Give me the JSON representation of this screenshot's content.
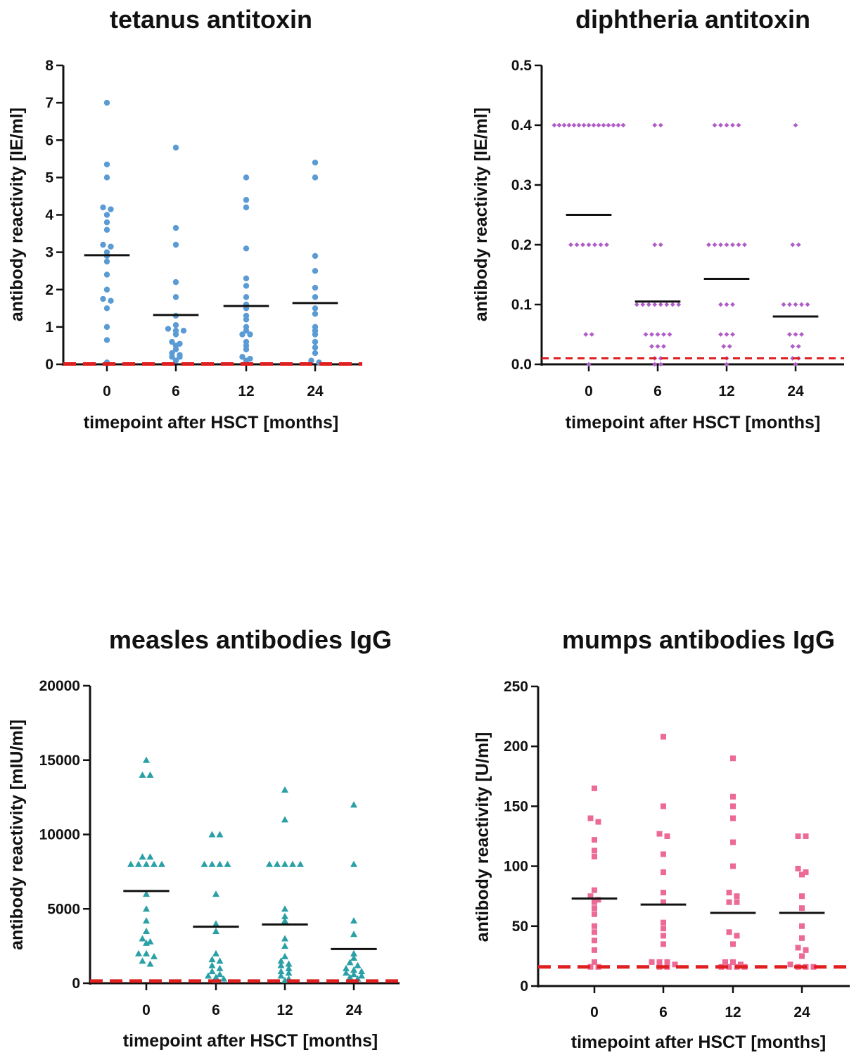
{
  "chart_data": [
    {
      "type": "scatter",
      "title": "tetanus antitoxin",
      "xlabel": "timepoint after HSCT [months]",
      "ylabel": "antibody reactivity [IE/ml]",
      "categories": [
        "0",
        "6",
        "12",
        "24"
      ],
      "ylim": [
        0,
        8
      ],
      "yticks": [
        "0",
        "1",
        "2",
        "3",
        "4",
        "5",
        "6",
        "7",
        "8"
      ],
      "marker": "circle",
      "color": "#5b9bd5",
      "threshold": 0.01,
      "threshold_color": "#e02020",
      "means": [
        2.92,
        1.32,
        1.56,
        1.64
      ],
      "series": [
        {
          "values": [
            7.0,
            5.35,
            5.0,
            4.2,
            4.15,
            4.0,
            3.8,
            3.6,
            3.2,
            3.15,
            3.0,
            2.9,
            2.75,
            2.4,
            2.0,
            1.75,
            1.7,
            1.5,
            1.0,
            0.65,
            0.05
          ]
        },
        {
          "values": [
            5.8,
            3.65,
            3.2,
            2.2,
            1.8,
            1.3,
            1.05,
            0.95,
            0.9,
            0.9,
            0.8,
            0.6,
            0.55,
            0.5,
            0.4,
            0.3,
            0.25,
            0.2,
            0.2,
            0.1
          ]
        },
        {
          "values": [
            5.0,
            4.4,
            4.2,
            3.1,
            2.3,
            2.1,
            1.8,
            1.6,
            1.5,
            1.3,
            1.2,
            1.0,
            0.9,
            0.8,
            0.8,
            0.6,
            0.5,
            0.4,
            0.2,
            0.15,
            0.1
          ]
        },
        {
          "values": [
            5.4,
            5.0,
            2.9,
            2.5,
            2.05,
            1.8,
            1.5,
            1.35,
            1.0,
            0.9,
            0.8,
            0.6,
            0.45,
            0.3,
            0.1,
            0.05
          ]
        }
      ]
    },
    {
      "type": "scatter",
      "title": "diphtheria antitoxin",
      "xlabel": "timepoint after HSCT [months]",
      "ylabel": "antibody reactivity [IE/ml]",
      "categories": [
        "0",
        "6",
        "12",
        "24"
      ],
      "ylim": [
        0,
        0.5
      ],
      "yticks": [
        "0.0",
        "0.1",
        "0.2",
        "0.3",
        "0.4",
        "0.5"
      ],
      "marker": "diamond",
      "color": "#b05cc8",
      "threshold": 0.01,
      "threshold_color": "#e02020",
      "means": [
        0.25,
        0.105,
        0.143,
        0.08
      ],
      "series": [
        {
          "values": [
            0.4,
            0.4,
            0.4,
            0.4,
            0.4,
            0.4,
            0.4,
            0.4,
            0.4,
            0.4,
            0.4,
            0.4,
            0.4,
            0.4,
            0.4,
            0.2,
            0.2,
            0.2,
            0.2,
            0.2,
            0.2,
            0.2,
            0.05,
            0.05,
            0.0
          ]
        },
        {
          "values": [
            0.4,
            0.4,
            0.2,
            0.2,
            0.1,
            0.1,
            0.1,
            0.1,
            0.1,
            0.1,
            0.1,
            0.1,
            0.05,
            0.05,
            0.05,
            0.05,
            0.05,
            0.03,
            0.03,
            0.03,
            0.01,
            0.01,
            0.0,
            0.0
          ]
        },
        {
          "values": [
            0.4,
            0.4,
            0.4,
            0.4,
            0.4,
            0.2,
            0.2,
            0.2,
            0.2,
            0.2,
            0.2,
            0.2,
            0.1,
            0.1,
            0.1,
            0.05,
            0.05,
            0.05,
            0.03,
            0.03,
            0.01,
            0.0
          ]
        },
        {
          "values": [
            0.4,
            0.2,
            0.2,
            0.1,
            0.1,
            0.1,
            0.1,
            0.1,
            0.05,
            0.05,
            0.05,
            0.03,
            0.03,
            0.01,
            0.01,
            0.0
          ]
        }
      ]
    },
    {
      "type": "scatter",
      "title": "measles antibodies IgG",
      "xlabel": "timepoint after HSCT [months]",
      "ylabel": "antibody reactivity [mIU/ml]",
      "categories": [
        "0",
        "6",
        "12",
        "24"
      ],
      "ylim": [
        0,
        20000
      ],
      "yticks": [
        "0",
        "5000",
        "10000",
        "15000",
        "20000"
      ],
      "marker": "triangle",
      "color": "#2aa0a6",
      "threshold": 150,
      "threshold_color": "#e02020",
      "means": [
        6200,
        3800,
        3950,
        2300
      ],
      "series": [
        {
          "values": [
            15000,
            14000,
            14000,
            8500,
            8500,
            8000,
            8000,
            8000,
            8000,
            8000,
            6000,
            5000,
            4200,
            3500,
            3000,
            2800,
            2700,
            2000,
            2000,
            1800,
            1500,
            1300
          ]
        },
        {
          "values": [
            10000,
            10000,
            8000,
            8000,
            8000,
            8000,
            6000,
            4000,
            3500,
            2000,
            1600,
            1500,
            1200,
            1000,
            800,
            600,
            500,
            400,
            300,
            200
          ]
        },
        {
          "values": [
            13000,
            11000,
            8000,
            8000,
            8000,
            8000,
            8000,
            5000,
            4500,
            4200,
            3000,
            2500,
            1800,
            1500,
            1300,
            1200,
            1000,
            800,
            700,
            500,
            300,
            200
          ]
        },
        {
          "values": [
            12000,
            8000,
            4200,
            3300,
            2000,
            1700,
            1400,
            1200,
            1000,
            900,
            800,
            700,
            600,
            500,
            400,
            300
          ]
        }
      ]
    },
    {
      "type": "scatter",
      "title": "mumps antibodies IgG",
      "xlabel": "timepoint after HSCT [months]",
      "ylabel": "antibody reactivity [U/ml]",
      "categories": [
        "0",
        "6",
        "12",
        "24"
      ],
      "ylim": [
        0,
        250
      ],
      "yticks": [
        "0",
        "50",
        "100",
        "150",
        "200",
        "250"
      ],
      "marker": "square",
      "color": "#ec6a96",
      "threshold": 16,
      "threshold_color": "#e02020",
      "means": [
        73,
        68,
        61,
        61
      ],
      "series": [
        {
          "values": [
            165,
            140,
            137,
            122,
            113,
            108,
            80,
            75,
            72,
            70,
            65,
            60,
            50,
            45,
            38,
            30,
            20,
            16,
            16
          ]
        },
        {
          "values": [
            208,
            150,
            127,
            125,
            110,
            95,
            78,
            70,
            53,
            48,
            42,
            35,
            20,
            20,
            20,
            18,
            16,
            16
          ]
        },
        {
          "values": [
            190,
            158,
            150,
            140,
            120,
            100,
            78,
            75,
            70,
            70,
            45,
            42,
            35,
            20,
            20,
            18,
            16,
            16,
            16,
            16
          ]
        },
        {
          "values": [
            125,
            125,
            98,
            95,
            93,
            75,
            65,
            50,
            40,
            32,
            30,
            25,
            18,
            16,
            16,
            16
          ]
        }
      ]
    }
  ]
}
